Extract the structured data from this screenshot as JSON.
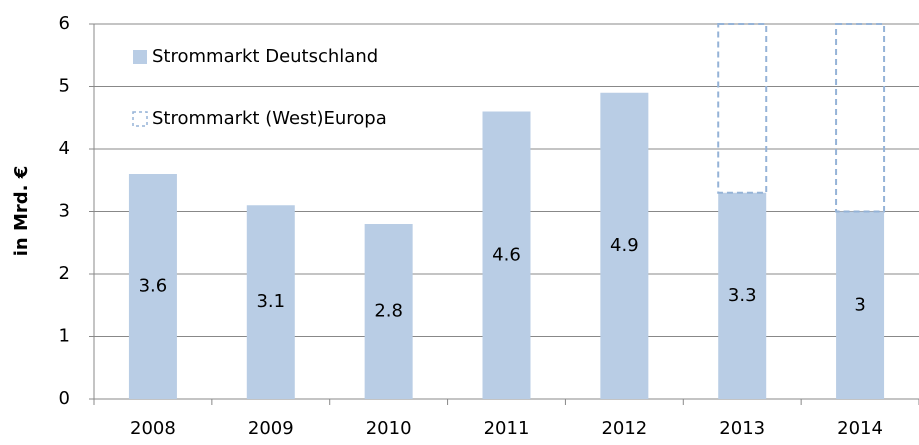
{
  "chart_data": {
    "type": "stacked_bar",
    "y_label": "in Mrd. €",
    "categories": [
      "2008",
      "2009",
      "2010",
      "2011",
      "2012",
      "2013",
      "2014"
    ],
    "series": [
      {
        "name": "Strommarkt Deutschland",
        "color": "#b9cde5",
        "style": "solid",
        "values": [
          3.6,
          3.1,
          2.8,
          4.6,
          4.9,
          3.3,
          3
        ]
      },
      {
        "name": "Strommarkt (West)Europa",
        "color": "#95b3d7",
        "style": "dashed",
        "values": [
          null,
          null,
          null,
          null,
          null,
          2.7,
          3
        ]
      }
    ],
    "data_labels_series": 0,
    "ylim": [
      0,
      6
    ],
    "yticks": [
      0,
      1,
      2,
      3,
      4,
      5,
      6
    ],
    "grid": true,
    "legend": "top-left"
  }
}
